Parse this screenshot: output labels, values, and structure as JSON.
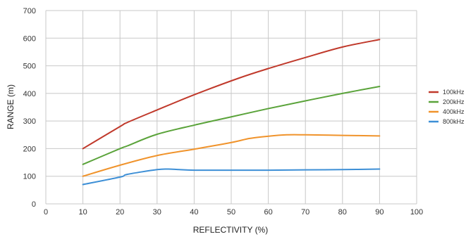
{
  "chart_data": {
    "type": "line",
    "title": "",
    "xlabel": "REFLECTIVITY (%)",
    "ylabel": "RANGE (m)",
    "xlim": [
      0,
      100
    ],
    "ylim": [
      0,
      700
    ],
    "xticks": [
      0,
      10,
      20,
      30,
      40,
      50,
      60,
      70,
      80,
      90,
      100
    ],
    "yticks": [
      0,
      100,
      200,
      300,
      400,
      500,
      600,
      700
    ],
    "grid": true,
    "legend_position": "right",
    "series": [
      {
        "name": "100kHz",
        "color": "#c0392b",
        "x": [
          10,
          20,
          22,
          30,
          40,
          52,
          60,
          70,
          80,
          90
        ],
        "y": [
          200,
          280,
          295,
          340,
          395,
          455,
          490,
          530,
          568,
          595
        ]
      },
      {
        "name": "200kHz",
        "color": "#5aa33a",
        "x": [
          10,
          20,
          22,
          30,
          40,
          50,
          60,
          70,
          80,
          90
        ],
        "y": [
          143,
          200,
          210,
          252,
          285,
          315,
          345,
          373,
          400,
          425
        ]
      },
      {
        "name": "400kHz",
        "color": "#f0932b",
        "x": [
          10,
          20,
          30,
          40,
          50,
          55,
          60,
          65,
          70,
          80,
          90
        ],
        "y": [
          100,
          140,
          175,
          198,
          222,
          237,
          245,
          250,
          250,
          248,
          246
        ]
      },
      {
        "name": "800kHz",
        "color": "#3d8fd6",
        "x": [
          10,
          20,
          22,
          30,
          33,
          36,
          40,
          50,
          60,
          70,
          80,
          90
        ],
        "y": [
          70,
          97,
          107,
          124,
          126,
          124,
          122,
          122,
          122,
          123,
          124,
          126
        ]
      }
    ]
  }
}
